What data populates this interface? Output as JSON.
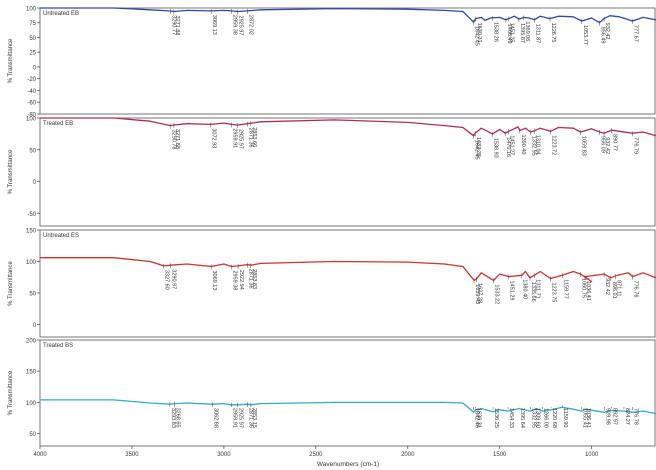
{
  "chart_data": [
    {
      "type": "line",
      "title": "Untreated EB",
      "ylabel": "% Transmittance",
      "xlim": [
        4000,
        650
      ],
      "ylim": [
        -80,
        100
      ],
      "yticks": [
        100,
        75,
        50,
        25,
        0,
        -20,
        -40,
        -60,
        -80
      ],
      "ytick_labels": [
        "100",
        "75",
        "50",
        "25",
        "0",
        "-20",
        "-40",
        "-60",
        "-80"
      ],
      "color": "#3346b0",
      "x": [
        4000,
        3600,
        3400,
        3300,
        3271,
        3200,
        3069,
        3000,
        2959,
        2926,
        2872,
        2800,
        2400,
        2000,
        1800,
        1700,
        1643,
        1630,
        1600,
        1580,
        1550,
        1500,
        1467,
        1451,
        1420,
        1395,
        1370,
        1340,
        1312,
        1280,
        1227,
        1180,
        1100,
        1054,
        1000,
        957,
        932,
        900,
        850,
        778,
        720,
        650
      ],
      "y": [
        100,
        100,
        97,
        95,
        94,
        96,
        95,
        96,
        95,
        94,
        95,
        97,
        99,
        98,
        96,
        94,
        76,
        82,
        84,
        79,
        83,
        84,
        80,
        82,
        86,
        81,
        84,
        83,
        80,
        86,
        82,
        86,
        85,
        78,
        83,
        75,
        82,
        87,
        85,
        78,
        84,
        80
      ],
      "peak_labels": [
        "3290.77",
        "3271.88",
        "3069.13",
        "2959.38",
        "2925.97",
        "2872.02",
        "1642.45",
        "1630.31",
        "1538.28",
        "1466.49",
        "1451.25",
        "1395.87",
        "1369.06",
        "1311.87",
        "1226.75",
        "1053.77",
        "956.49",
        "932.42",
        "777.67"
      ]
    },
    {
      "type": "line",
      "title": "Treated EB",
      "ylabel": "% Transmittance",
      "xlim": [
        4000,
        650
      ],
      "ylim": [
        -70,
        100
      ],
      "yticks": [
        100,
        50,
        0,
        -50
      ],
      "ytick_labels": [
        "100",
        "50",
        "0",
        "-50"
      ],
      "color": "#b52a57",
      "x": [
        4000,
        3600,
        3400,
        3291,
        3271,
        3200,
        3073,
        3000,
        2960,
        2926,
        2871,
        2800,
        2400,
        2000,
        1800,
        1700,
        1642,
        1634,
        1600,
        1539,
        1500,
        1470,
        1451,
        1400,
        1390,
        1360,
        1332,
        1310,
        1280,
        1224,
        1180,
        1100,
        1060,
        1000,
        956,
        932,
        890,
        850,
        777,
        720,
        650
      ],
      "y": [
        100,
        100,
        95,
        88,
        89,
        91,
        90,
        92,
        90,
        89,
        91,
        94,
        97,
        93,
        88,
        85,
        72,
        76,
        84,
        75,
        82,
        76,
        79,
        86,
        80,
        84,
        78,
        80,
        84,
        79,
        85,
        84,
        78,
        83,
        78,
        76,
        81,
        79,
        76,
        78,
        72
      ],
      "peak_labels": [
        "3290.78",
        "3271.88",
        "3072.93",
        "2959.91",
        "2925.97",
        "2871.36",
        "2853.66",
        "1642.45",
        "1633.35",
        "1538.93",
        "1470.16",
        "1451.27",
        "1390.40",
        "1332.95",
        "1310.04",
        "1223.72",
        "1059.83",
        "956.09",
        "932.42",
        "890.77",
        "776.79"
      ]
    },
    {
      "type": "line",
      "title": "Untreated ES",
      "ylabel": "% Transmittance",
      "xlim": [
        4000,
        650
      ],
      "ylim": [
        -20,
        150
      ],
      "yticks": [
        150,
        100,
        50,
        0
      ],
      "ytick_labels": [
        "150",
        "100",
        "50",
        "0"
      ],
      "color": "#d0312d",
      "x": [
        4000,
        3600,
        3400,
        3327,
        3290,
        3200,
        3069,
        3000,
        2959,
        2923,
        2871,
        2853,
        2800,
        2400,
        2000,
        1800,
        1700,
        1639,
        1627,
        1600,
        1533,
        1500,
        1451,
        1380,
        1360,
        1336,
        1312,
        1280,
        1224,
        1160,
        1100,
        1060,
        1000,
        1036,
        932,
        896,
        860,
        800,
        777,
        720,
        650
      ],
      "y": [
        106,
        106,
        100,
        93,
        94,
        96,
        92,
        96,
        92,
        93,
        95,
        94,
        97,
        100,
        99,
        96,
        92,
        70,
        72,
        82,
        70,
        80,
        76,
        78,
        84,
        74,
        78,
        84,
        73,
        78,
        84,
        80,
        68,
        76,
        80,
        74,
        78,
        82,
        76,
        82,
        74
      ],
      "peak_labels": [
        "3327.60",
        "3290.97",
        "3069.13",
        "2959.38",
        "2922.94",
        "2871.36",
        "2853.83",
        "1639.43",
        "1627.28",
        "1533.22",
        "1451.29",
        "1380.40",
        "1335.66",
        "1311.71",
        "1223.75",
        "1159.77",
        "1060.75",
        "1036.41",
        "932.42",
        "896.01",
        "871.11",
        "776.76"
      ]
    },
    {
      "type": "line",
      "title": "Treated BS",
      "ylabel": "% Transmittance",
      "xlim": [
        4000,
        650
      ],
      "ylim": [
        30,
        200
      ],
      "yticks": [
        200,
        150,
        100,
        50
      ],
      "ytick_labels": [
        "200",
        "150",
        "100",
        "50"
      ],
      "color": "#35aac8",
      "x": [
        4000,
        3600,
        3400,
        3294,
        3269,
        3200,
        3063,
        3000,
        2960,
        2926,
        2871,
        2853,
        2800,
        2400,
        2000,
        1800,
        1700,
        1642,
        1630,
        1600,
        1536,
        1500,
        1454,
        1395,
        1333,
        1300,
        1266,
        1220,
        1160,
        1100,
        1055,
        1036,
        930,
        893,
        824,
        777,
        720,
        650
      ],
      "y": [
        104,
        104,
        99,
        97,
        98,
        99,
        97,
        98,
        96,
        96,
        97,
        96,
        98,
        100,
        100,
        100,
        99,
        84,
        88,
        90,
        85,
        88,
        86,
        90,
        86,
        90,
        86,
        88,
        92,
        89,
        86,
        89,
        84,
        87,
        86,
        84,
        86,
        82
      ],
      "peak_labels": [
        "3293.83",
        "3268.65",
        "3062.88",
        "2959.91",
        "2925.97",
        "2871.36",
        "2853.15",
        "1642.46",
        "1630.31",
        "1536.25",
        "1454.33",
        "1395.64",
        "1332.95",
        "1309.60",
        "1266.00",
        "1220.68",
        "1159.90",
        "1055.41",
        "1036.41",
        "929.98",
        "892.97",
        "824.27",
        "776.78"
      ]
    }
  ],
  "x_axis": {
    "label": "Wavenumbers (cm-1)",
    "ticks": [
      4000,
      3500,
      3000,
      2500,
      2000,
      1500,
      1000
    ],
    "tick_labels": [
      "4000",
      "3500",
      "3000",
      "2500",
      "2000",
      "1500",
      "1000"
    ]
  }
}
